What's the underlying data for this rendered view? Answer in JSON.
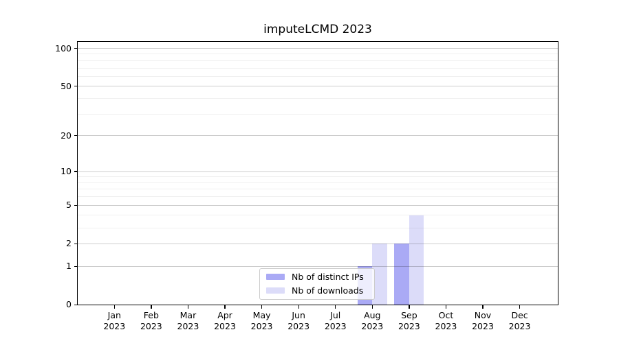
{
  "chart_data": {
    "type": "bar",
    "title": "imputeLCMD 2023",
    "categories": [
      "Jan",
      "Feb",
      "Mar",
      "Apr",
      "May",
      "Jun",
      "Jul",
      "Aug",
      "Sep",
      "Oct",
      "Nov",
      "Dec"
    ],
    "x_tick_year": "2023",
    "series": [
      {
        "name": "Nb of distinct IPs",
        "color": "#aaaaf5",
        "values": [
          0,
          0,
          0,
          0,
          0,
          0,
          0,
          1,
          2,
          0,
          0,
          0
        ]
      },
      {
        "name": "Nb of downloads",
        "color": "#dcdcf9",
        "values": [
          0,
          0,
          0,
          0,
          0,
          0,
          0,
          2,
          4,
          0,
          0,
          0
        ]
      }
    ],
    "yscale": "log1p",
    "ylim": [
      0,
      100
    ],
    "y_major_ticks": [
      100,
      50,
      20,
      10,
      5,
      2,
      1,
      0
    ],
    "y_minor_gridlines": [
      90,
      80,
      70,
      60,
      40,
      30,
      9,
      8,
      7,
      6,
      4,
      3
    ],
    "grid": "horizontal",
    "legend_position": "lower-center",
    "axis_color": "#000000",
    "grid_major_color": "rgba(0,0,0,0.20)",
    "grid_minor_color": "rgba(0,0,0,0.06)"
  }
}
